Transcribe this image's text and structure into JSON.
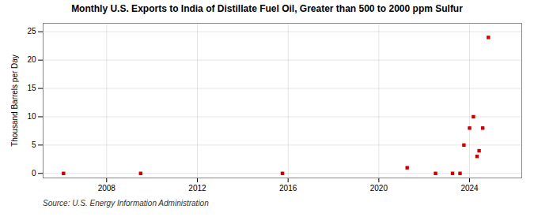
{
  "chart_data": {
    "type": "scatter",
    "title": "Monthly U.S. Exports to India of Distillate Fuel Oil, Greater than 500 to 2000 ppm Sulfur",
    "ylabel": "Thousand Barrels per Day",
    "caption": "Source: U.S. Energy Information Administration",
    "x": [
      2006.1,
      2009.5,
      2015.75,
      2021.25,
      2022.5,
      2023.25,
      2023.58,
      2023.75,
      2024.0,
      2024.17,
      2024.33,
      2024.42,
      2024.58,
      2024.83
    ],
    "values": [
      0.0,
      0.0,
      0.0,
      1.0,
      0.0,
      0.0,
      0.0,
      5.0,
      8.0,
      10.0,
      3.0,
      4.0,
      8.0,
      24.0
    ],
    "color": "#cc0000",
    "marker": "square",
    "xlim": [
      2005.2,
      2026.3
    ],
    "xticks": [
      2008,
      2012,
      2016,
      2020,
      2024
    ],
    "ylim": [
      -0.8,
      26.5
    ],
    "yticks": [
      0,
      5,
      10,
      15,
      20,
      25
    ],
    "grid": true
  }
}
